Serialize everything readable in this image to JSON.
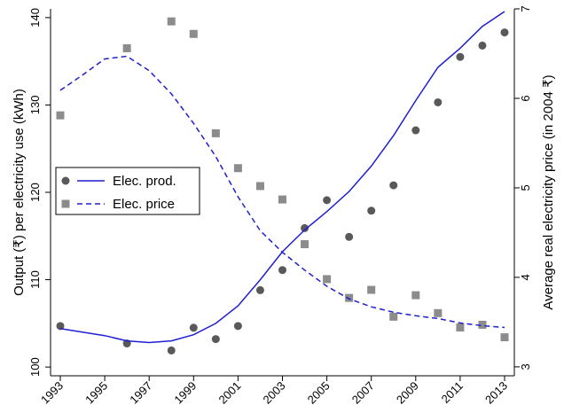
{
  "chart_data": {
    "type": "scatter",
    "title": "",
    "xlabel": "",
    "ylabel_left": "Output (₹) per electricity use (kWh)",
    "ylabel_right": "Average real electricity price (in 2004 ₹)",
    "x_ticks": [
      "1993",
      "1995",
      "1997",
      "1999",
      "2001",
      "2003",
      "2005",
      "2007",
      "2009",
      "2011",
      "2013"
    ],
    "y_left_ticks": [
      "100",
      "110",
      "120",
      "130",
      "140"
    ],
    "y_right_ticks": [
      "3",
      "4",
      "5",
      "6",
      "7"
    ],
    "xlim": [
      1993,
      2013
    ],
    "ylim_left": [
      99,
      141
    ],
    "ylim_right": [
      2.9,
      7.0
    ],
    "grid": false,
    "legend_position": "left-middle",
    "series": [
      {
        "name": "Elec. prod.",
        "kind": "points",
        "marker": "circle",
        "axis": "left",
        "color": "#595959",
        "x": [
          1993,
          1996,
          1998,
          1999,
          2000,
          2001,
          2002,
          2003,
          2004,
          2005,
          2006,
          2007,
          2008,
          2009,
          2010,
          2011,
          2012,
          2013
        ],
        "y": [
          104.7,
          102.7,
          101.9,
          104.5,
          103.2,
          104.7,
          108.8,
          111.1,
          115.9,
          119.1,
          114.9,
          117.9,
          120.8,
          127.1,
          130.3,
          135.5,
          136.8,
          138.3
        ]
      },
      {
        "name": "Elec. prod.",
        "kind": "line",
        "style": "solid",
        "axis": "left",
        "color": "#1f1fd0",
        "x": [
          1993,
          1994,
          1995,
          1996,
          1997,
          1998,
          1999,
          2000,
          2001,
          2002,
          2003,
          2004,
          2005,
          2006,
          2007,
          2008,
          2009,
          2010,
          2011,
          2012,
          2013
        ],
        "y": [
          104.4,
          104.0,
          103.6,
          103.0,
          102.8,
          103.0,
          103.7,
          105.0,
          107.0,
          110.0,
          113.2,
          115.7,
          117.8,
          120.1,
          123.0,
          126.5,
          130.5,
          134.3,
          136.5,
          139.0,
          140.7
        ]
      },
      {
        "name": "Elec. price",
        "kind": "points",
        "marker": "square",
        "axis": "right",
        "color": "#8c8c8c",
        "x": [
          1993,
          1996,
          1998,
          1999,
          2000,
          2001,
          2002,
          2003,
          2004,
          2005,
          2006,
          2007,
          2008,
          2009,
          2010,
          2011,
          2012,
          2013
        ],
        "y": [
          5.81,
          6.56,
          6.86,
          6.72,
          5.61,
          5.22,
          5.02,
          4.87,
          4.37,
          3.98,
          3.77,
          3.86,
          3.56,
          3.8,
          3.6,
          3.44,
          3.47,
          3.33
        ]
      },
      {
        "name": "Elec. price",
        "kind": "line",
        "style": "dashed",
        "axis": "right",
        "color": "#1f1fd0",
        "x": [
          1993,
          1994,
          1995,
          1996,
          1997,
          1998,
          1999,
          2000,
          2001,
          2002,
          2003,
          2004,
          2005,
          2006,
          2007,
          2008,
          2009,
          2010,
          2011,
          2012,
          2013
        ],
        "y": [
          6.09,
          6.26,
          6.44,
          6.47,
          6.31,
          6.05,
          5.72,
          5.35,
          4.9,
          4.52,
          4.28,
          4.08,
          3.9,
          3.76,
          3.67,
          3.61,
          3.57,
          3.54,
          3.49,
          3.46,
          3.44
        ]
      }
    ]
  }
}
